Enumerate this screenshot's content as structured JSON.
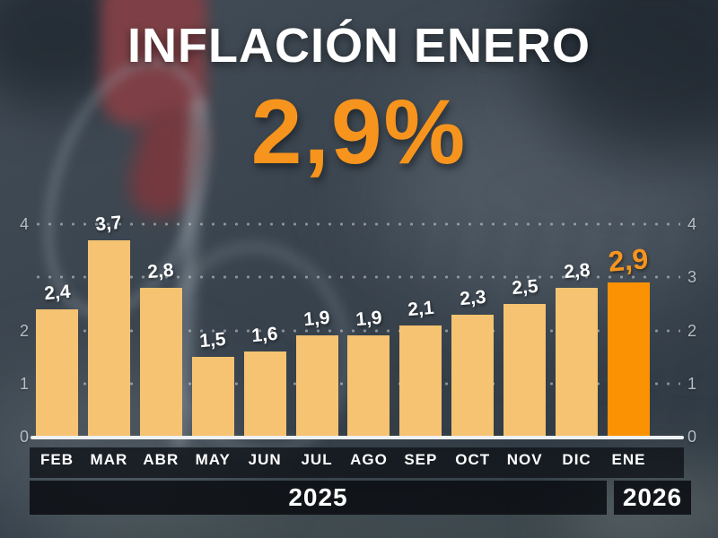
{
  "header": {
    "title": "INFLACIÓN ENERO",
    "headline_value": "2,9%"
  },
  "chart_data": {
    "type": "bar",
    "title": "INFLACIÓN ENERO",
    "categories": [
      "FEB",
      "MAR",
      "ABR",
      "MAY",
      "JUN",
      "JUL",
      "AGO",
      "SEP",
      "OCT",
      "NOV",
      "DIC",
      "ENE"
    ],
    "values": [
      2.4,
      3.7,
      2.8,
      1.5,
      1.6,
      1.9,
      1.9,
      2.1,
      2.3,
      2.5,
      2.8,
      2.9
    ],
    "value_labels": [
      "2,4",
      "3,7",
      "2,8",
      "1,5",
      "1,6",
      "1,9",
      "1,9",
      "2,1",
      "2,3",
      "2,5",
      "2,8",
      "2,9"
    ],
    "highlight_index": 11,
    "ylim": [
      0,
      4
    ],
    "grid": true,
    "grid_values": [
      1,
      2,
      3,
      4
    ],
    "left_axis_ticks": [
      {
        "value": 4,
        "label": "4"
      },
      {
        "value": 2,
        "label": "2"
      },
      {
        "value": 1,
        "label": "1"
      },
      {
        "value": 0,
        "label": "0"
      }
    ],
    "right_axis_ticks": [
      {
        "value": 4,
        "label": "4"
      },
      {
        "value": 3,
        "label": "3"
      },
      {
        "value": 2,
        "label": "2"
      },
      {
        "value": 1,
        "label": "1"
      },
      {
        "value": 0,
        "label": "0"
      }
    ],
    "legend": false,
    "xlabel": "",
    "ylabel": ""
  },
  "footer": {
    "year_primary": "2025",
    "year_secondary": "2026"
  },
  "colors": {
    "bar": "#F5C371",
    "bar_highlight": "#FB9203",
    "accent_orange": "#F7941D",
    "axis_text": "#B6BDC4",
    "label_text": "#FFFFFF",
    "band_background": "#14181D"
  }
}
